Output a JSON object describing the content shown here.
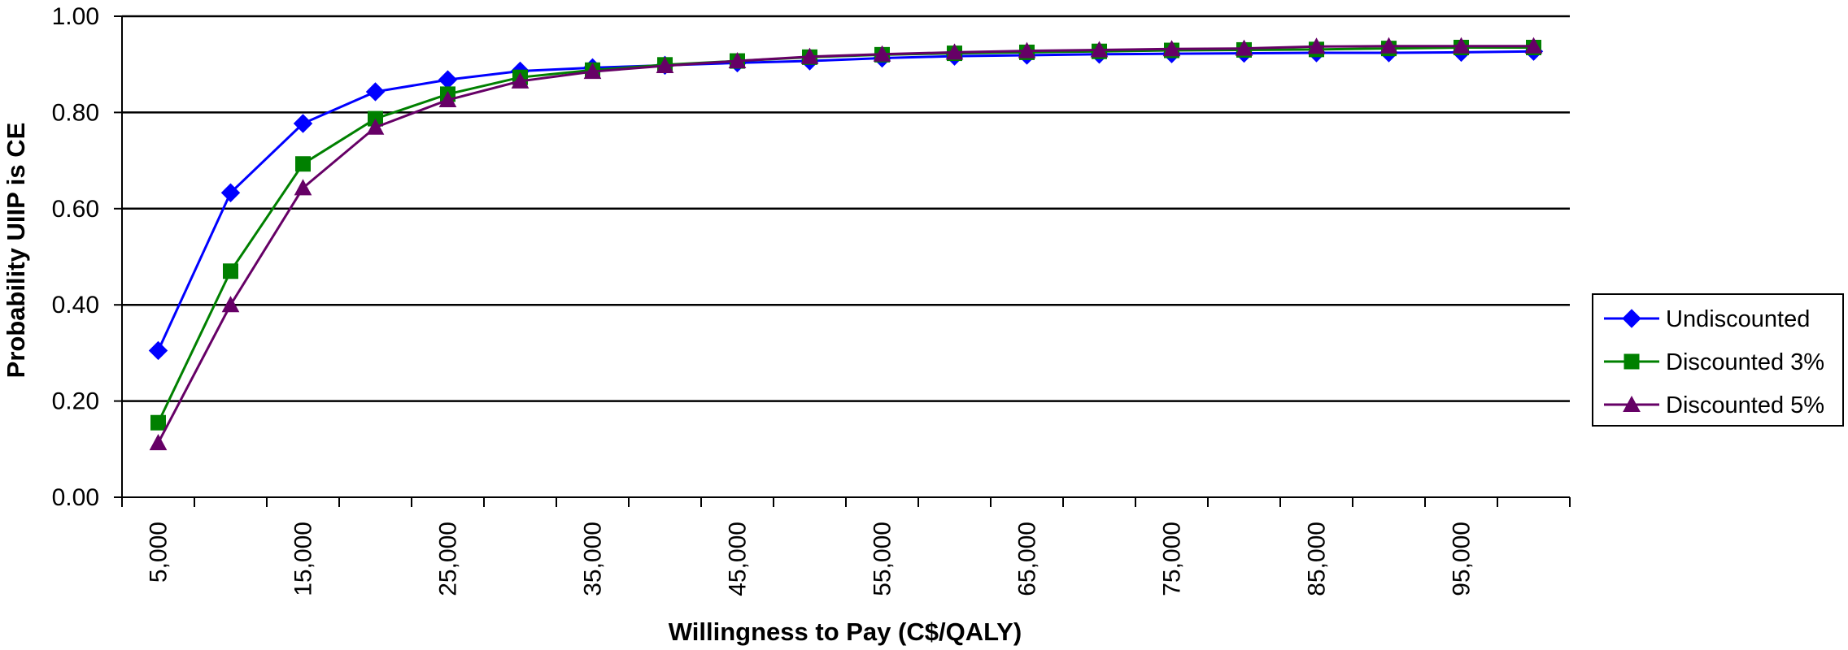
{
  "chart_data": {
    "type": "line",
    "title": "",
    "xlabel": "Willingness to Pay (C$/QALY)",
    "ylabel": "Probability UIIP is CE",
    "x": [
      5000,
      10000,
      15000,
      20000,
      25000,
      30000,
      35000,
      40000,
      45000,
      50000,
      55000,
      60000,
      65000,
      70000,
      75000,
      80000,
      85000,
      90000,
      95000,
      100000
    ],
    "x_tick_labels": [
      "5,000",
      "15,000",
      "25,000",
      "35,000",
      "45,000",
      "55,000",
      "65,000",
      "75,000",
      "85,000",
      "95,000"
    ],
    "x_tick_label_values": [
      5000,
      15000,
      25000,
      35000,
      45000,
      55000,
      65000,
      75000,
      85000,
      95000
    ],
    "y_tick_labels": [
      "0.00",
      "0.20",
      "0.40",
      "0.60",
      "0.80",
      "1.00"
    ],
    "y_tick_values": [
      0,
      0.2,
      0.4,
      0.6,
      0.8,
      1.0
    ],
    "ylim": [
      0,
      1.0
    ],
    "grid": true,
    "legend_position": "right",
    "series": [
      {
        "name": "Undiscounted",
        "color": "#0000FF",
        "marker": "diamond",
        "values": [
          0.305,
          0.633,
          0.777,
          0.843,
          0.868,
          0.886,
          0.893,
          0.898,
          0.903,
          0.907,
          0.913,
          0.917,
          0.919,
          0.921,
          0.922,
          0.923,
          0.924,
          0.924,
          0.925,
          0.927
        ]
      },
      {
        "name": "Discounted 3%",
        "color": "#008000",
        "marker": "square",
        "values": [
          0.155,
          0.47,
          0.693,
          0.787,
          0.838,
          0.873,
          0.888,
          0.899,
          0.907,
          0.915,
          0.92,
          0.923,
          0.925,
          0.927,
          0.929,
          0.93,
          0.931,
          0.933,
          0.935,
          0.935
        ]
      },
      {
        "name": "Discounted 5%",
        "color": "#660066",
        "marker": "triangle",
        "values": [
          0.113,
          0.4,
          0.643,
          0.769,
          0.826,
          0.865,
          0.885,
          0.897,
          0.907,
          0.916,
          0.921,
          0.925,
          0.928,
          0.93,
          0.932,
          0.933,
          0.937,
          0.938,
          0.938,
          0.938
        ]
      }
    ]
  }
}
